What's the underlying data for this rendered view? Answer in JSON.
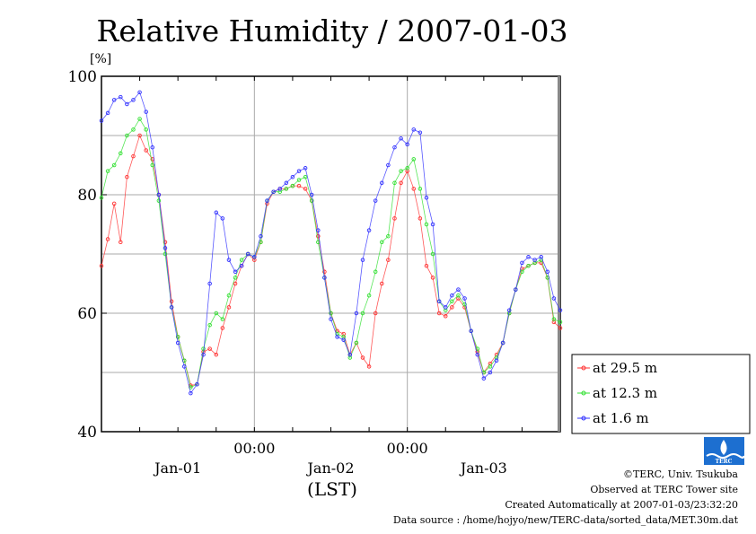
{
  "chart_data": {
    "type": "line",
    "title": "Relative Humidity / 2007-01-03",
    "ylabel": "[%]",
    "xlabel": "(LST)",
    "ylim": [
      40,
      100
    ],
    "yticks": [
      "100",
      "80",
      "60",
      "40"
    ],
    "xlim_hours": [
      0,
      72
    ],
    "time_step_hours": 1,
    "xticks_time": [
      {
        "hour": 24,
        "label": "00:00"
      },
      {
        "hour": 48,
        "label": "00:00"
      }
    ],
    "xticks_date": [
      {
        "hour": 12,
        "label": "Jan-01"
      },
      {
        "hour": 36,
        "label": "Jan-02"
      },
      {
        "hour": 60,
        "label": "Jan-03"
      }
    ],
    "grid": true,
    "legend_position": "right-bottom outside",
    "series": [
      {
        "name": "at 29.5 m",
        "color": "#ff3030",
        "values": [
          68,
          72.5,
          78.5,
          72,
          83,
          86.5,
          90,
          87.5,
          86,
          80,
          72,
          62,
          56,
          52,
          47.8,
          48,
          53.5,
          54,
          53,
          57.5,
          61,
          65,
          68,
          70,
          69,
          72,
          78.5,
          80.5,
          81,
          81,
          81.5,
          81.5,
          81,
          79,
          73,
          67,
          60,
          57,
          56.5,
          53,
          55,
          52.5,
          51,
          60,
          65,
          69,
          76,
          82,
          84,
          81,
          76,
          68,
          66,
          60,
          59.5,
          61,
          62.5,
          61,
          57,
          53.5,
          50,
          51.5,
          53,
          55,
          60,
          64,
          67.5,
          68,
          68.5,
          68.5,
          66,
          58.5,
          57.5
        ]
      },
      {
        "name": "at 12.3 m",
        "color": "#30e030",
        "values": [
          79.5,
          84,
          85,
          87,
          90,
          91,
          92.8,
          91,
          85,
          79,
          70,
          61,
          56,
          52,
          47.5,
          48,
          54,
          58,
          60,
          59,
          63,
          66,
          69,
          70,
          69.5,
          72,
          79,
          80.5,
          80.5,
          81,
          81.5,
          82.5,
          83,
          79,
          72,
          66,
          60,
          56.5,
          56,
          52.5,
          55,
          60,
          63,
          67,
          72,
          73,
          82,
          84,
          84.5,
          86,
          81,
          75,
          70,
          62,
          60.5,
          62,
          63,
          61.5,
          57,
          54,
          50,
          51,
          52.5,
          55,
          60,
          64,
          67,
          68,
          68.5,
          69,
          66,
          59,
          58.5
        ]
      },
      {
        "name": "at 1.6 m",
        "color": "#3030ff",
        "values": [
          92.5,
          93.8,
          96,
          96.5,
          95.3,
          96,
          97.3,
          94,
          88,
          80,
          71,
          61,
          55,
          51,
          46.5,
          48,
          53,
          65,
          77,
          76,
          69,
          67,
          68,
          70,
          69.5,
          73,
          79,
          80.5,
          81,
          82,
          83,
          84,
          84.5,
          80,
          74,
          66,
          59,
          56,
          55.5,
          53,
          60,
          69,
          74,
          79,
          82,
          85,
          88,
          89.5,
          88.5,
          91,
          90.5,
          79.5,
          75,
          62,
          61,
          63,
          64,
          62.5,
          57,
          53,
          49,
          50,
          52,
          55,
          60.5,
          64,
          68.5,
          69.5,
          69,
          69.5,
          67,
          62.5,
          60.5
        ]
      }
    ]
  },
  "footer": {
    "copyright": "©TERC, Univ. Tsukuba",
    "observed": "Observed at TERC Tower site",
    "created": "Created Automatically at 2007-01-03/23:32:20",
    "source": "Data source : /home/hojyo/new/TERC-data/sorted_data/MET.30m.dat"
  },
  "logo": {
    "text": "TERC"
  }
}
